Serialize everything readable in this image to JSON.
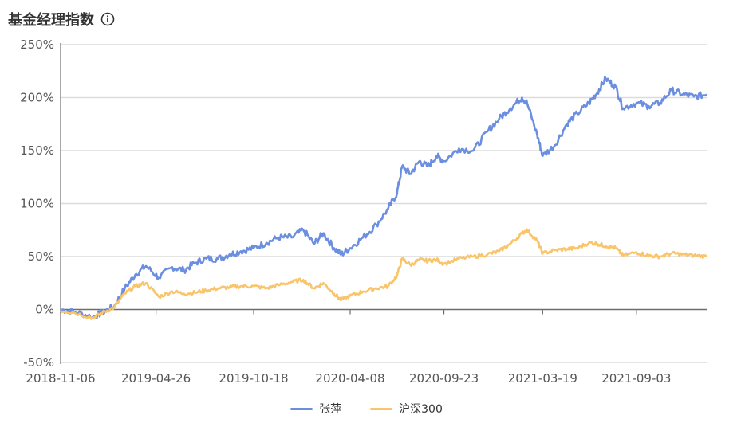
{
  "header": {
    "title": "基金经理指数",
    "info_icon": "info-circle-icon"
  },
  "chart_data": {
    "type": "line",
    "title": "基金经理指数",
    "y_unit": "%",
    "ylim": [
      -50,
      250
    ],
    "yticks": [
      -50,
      0,
      50,
      100,
      150,
      200,
      250
    ],
    "ytick_labels": [
      "-50%",
      "0%",
      "50%",
      "100%",
      "150%",
      "200%",
      "250%"
    ],
    "xlim": [
      "2018-11-06",
      "2022-01-07"
    ],
    "xtick_labels": [
      "2018-11-06",
      "2019-04-26",
      "2019-10-18",
      "2020-04-08",
      "2020-09-23",
      "2021-03-19",
      "2021-09-03"
    ],
    "grid": true,
    "legend_position": "bottom-center",
    "series": [
      {
        "name": "张萍",
        "color": "#6b8ee0",
        "x": [
          "2018-11-06",
          "2018-11-30",
          "2019-01-03",
          "2019-01-20",
          "2019-02-10",
          "2019-03-01",
          "2019-03-20",
          "2019-04-08",
          "2019-05-01",
          "2019-05-25",
          "2019-06-15",
          "2019-07-05",
          "2019-07-25",
          "2019-08-15",
          "2019-09-05",
          "2019-09-25",
          "2019-10-18",
          "2019-11-10",
          "2019-12-01",
          "2019-12-25",
          "2020-01-15",
          "2020-02-03",
          "2020-02-20",
          "2020-03-10",
          "2020-03-23",
          "2020-04-08",
          "2020-05-01",
          "2020-05-25",
          "2020-06-15",
          "2020-07-01",
          "2020-07-10",
          "2020-07-25",
          "2020-08-10",
          "2020-08-25",
          "2020-09-10",
          "2020-09-23",
          "2020-10-20",
          "2020-11-15",
          "2020-12-10",
          "2020-12-31",
          "2021-01-20",
          "2021-02-10",
          "2021-02-19",
          "2021-03-09",
          "2021-03-19",
          "2021-04-10",
          "2021-05-01",
          "2021-05-20",
          "2021-06-10",
          "2021-06-25",
          "2021-07-10",
          "2021-07-28",
          "2021-08-10",
          "2021-09-03",
          "2021-09-25",
          "2021-10-15",
          "2021-11-05",
          "2021-11-25",
          "2021-12-15",
          "2022-01-07"
        ],
        "y": [
          0,
          -2,
          -7,
          -3,
          3,
          20,
          33,
          41,
          30,
          40,
          37,
          44,
          48,
          48,
          52,
          55,
          58,
          63,
          68,
          68,
          75,
          62,
          72,
          58,
          52,
          58,
          68,
          80,
          95,
          110,
          135,
          128,
          140,
          135,
          145,
          140,
          152,
          150,
          168,
          180,
          190,
          200,
          195,
          165,
          145,
          155,
          175,
          185,
          195,
          205,
          218,
          210,
          190,
          195,
          192,
          195,
          207,
          203,
          201,
          203
        ]
      },
      {
        "name": "沪深300",
        "color": "#f9c46a",
        "x": [
          "2018-11-06",
          "2018-11-30",
          "2019-01-03",
          "2019-01-20",
          "2019-02-10",
          "2019-03-01",
          "2019-03-20",
          "2019-04-08",
          "2019-05-01",
          "2019-05-25",
          "2019-06-15",
          "2019-07-05",
          "2019-07-25",
          "2019-08-15",
          "2019-09-05",
          "2019-09-25",
          "2019-10-18",
          "2019-11-10",
          "2019-12-01",
          "2019-12-25",
          "2020-01-15",
          "2020-02-03",
          "2020-02-20",
          "2020-03-10",
          "2020-03-23",
          "2020-04-08",
          "2020-05-01",
          "2020-05-25",
          "2020-06-15",
          "2020-07-01",
          "2020-07-10",
          "2020-07-25",
          "2020-08-10",
          "2020-08-25",
          "2020-09-10",
          "2020-09-23",
          "2020-10-20",
          "2020-11-15",
          "2020-12-10",
          "2020-12-31",
          "2021-01-20",
          "2021-02-10",
          "2021-02-19",
          "2021-03-09",
          "2021-03-19",
          "2021-04-10",
          "2021-05-01",
          "2021-05-20",
          "2021-06-10",
          "2021-06-25",
          "2021-07-10",
          "2021-07-28",
          "2021-08-10",
          "2021-09-03",
          "2021-09-25",
          "2021-10-15",
          "2021-11-05",
          "2021-11-25",
          "2021-12-15",
          "2022-01-07"
        ],
        "y": [
          -1,
          -3,
          -8,
          -3,
          2,
          15,
          22,
          25,
          12,
          17,
          15,
          16,
          18,
          20,
          21,
          22,
          22,
          20,
          23,
          26,
          28,
          20,
          25,
          15,
          9,
          13,
          17,
          20,
          22,
          32,
          48,
          42,
          47,
          46,
          47,
          43,
          48,
          50,
          52,
          55,
          62,
          72,
          75,
          65,
          53,
          56,
          57,
          58,
          63,
          62,
          60,
          58,
          51,
          54,
          51,
          50,
          53,
          52,
          51,
          50
        ]
      }
    ]
  }
}
